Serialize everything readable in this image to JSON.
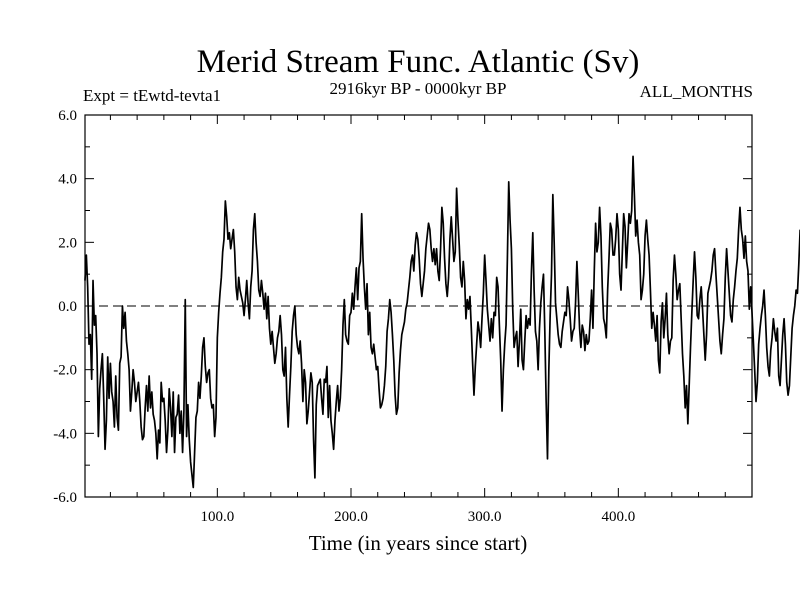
{
  "chart_data": {
    "type": "line",
    "title": "Merid Stream Func. Atlantic (Sv)",
    "subtitle_left": "Expt = tEwtd-tevta1",
    "subtitle_center": "2916kyr BP - 0000kyr BP",
    "subtitle_right": "ALL_MONTHS",
    "xlabel": "Time (in years since start)",
    "ylabel": "",
    "xlim": [
      1,
      500
    ],
    "ylim": [
      -6,
      6
    ],
    "xticks": [
      100,
      200,
      300,
      400
    ],
    "xtick_labels": [
      "100.0",
      "200.0",
      "300.0",
      "400.0"
    ],
    "yticks": [
      6,
      4,
      2,
      0,
      -2,
      -4,
      -6
    ],
    "ytick_labels": [
      "6.0",
      "4.0",
      "2.0",
      "0.0",
      "-2.0",
      "-4.0",
      "-6.0"
    ],
    "zero_line": "dashed",
    "series": [
      {
        "name": "Merid Stream Func. Atlantic",
        "x_start": 1,
        "x_step": 1,
        "values": [
          0.8,
          1.6,
          0.6,
          -1.2,
          -0.9,
          -2.3,
          0.8,
          -0.6,
          -0.3,
          -1.5,
          -4.1,
          -2.6,
          -2.0,
          -1.5,
          -2.9,
          -4.5,
          -3.6,
          -1.6,
          -2.9,
          -1.8,
          -2.7,
          -3.0,
          -3.8,
          -2.2,
          -3.5,
          -3.9,
          -1.8,
          -1.6,
          0.0,
          -0.7,
          -0.2,
          -1.1,
          -1.5,
          -2.0,
          -3.3,
          -2.7,
          -2.0,
          -2.4,
          -3.0,
          -2.7,
          -2.4,
          -3.0,
          -3.8,
          -4.2,
          -4.1,
          -3.2,
          -2.5,
          -3.3,
          -2.2,
          -3.2,
          -2.7,
          -3.4,
          -3.6,
          -4.0,
          -4.8,
          -3.9,
          -4.3,
          -2.4,
          -3.0,
          -2.9,
          -3.6,
          -4.6,
          -3.9,
          -2.6,
          -3.2,
          -4.1,
          -2.7,
          -4.6,
          -3.5,
          -3.4,
          -2.8,
          -4.0,
          -3.3,
          -4.6,
          -3.3,
          0.2,
          -4.1,
          -3.1,
          -4.2,
          -4.9,
          -5.3,
          -5.7,
          -4.6,
          -3.5,
          -3.3,
          -2.4,
          -2.9,
          -2.2,
          -1.3,
          -1.0,
          -1.9,
          -2.4,
          -2.1,
          -2.0,
          -2.9,
          -3.2,
          -3.1,
          -4.1,
          -3.5,
          -1.0,
          -0.2,
          0.4,
          0.9,
          1.7,
          2.1,
          3.3,
          2.8,
          2.1,
          2.3,
          1.8,
          2.1,
          2.4,
          1.7,
          0.6,
          0.2,
          0.9,
          0.5,
          0.3,
          0.1,
          -0.3,
          0.2,
          0.8,
          0.1,
          -0.4,
          0.6,
          1.1,
          2.4,
          2.9,
          2.0,
          1.4,
          0.5,
          0.3,
          0.8,
          0.4,
          -0.1,
          0.4,
          -0.4,
          0.3,
          -0.7,
          -1.2,
          -0.8,
          -1.3,
          -1.8,
          -1.5,
          -1.0,
          -0.8,
          -0.3,
          -0.9,
          -2.0,
          -2.2,
          -1.3,
          -2.9,
          -3.8,
          -2.8,
          -1.9,
          -0.8,
          -0.3,
          0.0,
          -0.9,
          -1.3,
          -1.5,
          -1.1,
          -1.8,
          -3.0,
          -2.0,
          -2.4,
          -3.7,
          -3.3,
          -2.7,
          -2.1,
          -2.4,
          -4.2,
          -5.4,
          -3.1,
          -2.5,
          -2.4,
          -2.3,
          -2.9,
          -3.4,
          -2.3,
          -2.4,
          -1.9,
          -3.5,
          -2.5,
          -3.6,
          -4.0,
          -4.5,
          -3.6,
          -3.0,
          -2.5,
          -3.3,
          -2.9,
          -2.0,
          -0.6,
          0.2,
          -0.9,
          -1.1,
          -1.2,
          -0.3,
          -0.2,
          0.4,
          -0.1,
          0.6,
          1.2,
          0.2,
          1.2,
          1.4,
          2.9,
          1.5,
          0.6,
          -0.1,
          0.7,
          -0.9,
          -0.2,
          -1.3,
          -1.5,
          -1.2,
          -1.6,
          -2.0,
          -1.9,
          -2.6,
          -3.2,
          -3.1,
          -2.9,
          -2.5,
          -1.9,
          -0.8,
          -0.4,
          0.2,
          -0.2,
          -0.9,
          -1.7,
          -2.8,
          -3.4,
          -3.2,
          -2.1,
          -1.4,
          -0.9,
          -0.7,
          -0.5,
          -0.1,
          0.1,
          0.5,
          0.9,
          1.4,
          1.6,
          1.1,
          1.9,
          2.3,
          2.1,
          1.5,
          0.7,
          0.3,
          0.7,
          1.1,
          1.8,
          2.2,
          2.6,
          2.4,
          1.8,
          1.4,
          1.8,
          1.3,
          1.8,
          1.1,
          0.8,
          1.8,
          3.1,
          2.6,
          1.5,
          0.7,
          0.3,
          0.9,
          2.1,
          2.8,
          2.1,
          1.4,
          1.7,
          3.7,
          2.7,
          1.9,
          0.9,
          0.6,
          1.4,
          0.8,
          -0.4,
          0.2,
          -0.1,
          0.3,
          -0.7,
          -1.8,
          -2.8,
          -1.9,
          -1.2,
          -0.5,
          -0.8,
          -1.3,
          -0.4,
          0.4,
          1.6,
          0.8,
          -0.1,
          -0.6,
          -1.1,
          -0.4,
          -1.0,
          -0.2,
          -0.3,
          0.9,
          0.6,
          -0.6,
          -1.7,
          -3.3,
          -2.0,
          -1.2,
          -0.6,
          1.5,
          3.9,
          2.7,
          1.8,
          -0.1,
          -1.3,
          -1.0,
          -0.8,
          -1.9,
          -1.1,
          -0.1,
          -1.7,
          -2.0,
          -1.1,
          -0.3,
          -0.7,
          -0.4,
          -0.6,
          1.1,
          2.3,
          0.5,
          -0.8,
          -1.1,
          -2.0,
          -0.7,
          0.1,
          0.6,
          1.0,
          -0.8,
          -3.0,
          -4.8,
          -2.0,
          -0.3,
          1.0,
          3.5,
          2.0,
          0.1,
          -0.4,
          -0.9,
          -1.2,
          -1.3,
          -0.8,
          -0.5,
          -0.2,
          -0.3,
          0.6,
          0.2,
          -0.4,
          -1.1,
          -0.8,
          -0.7,
          0.1,
          1.4,
          0.4,
          -0.7,
          -1.3,
          -0.6,
          -0.8,
          -1.4,
          -0.9,
          -1.2,
          -1.1,
          -0.4,
          0.5,
          -0.7,
          1.1,
          2.6,
          1.7,
          2.0,
          3.1,
          2.2,
          0.6,
          -0.4,
          -0.6,
          -1.0,
          0.5,
          1.5,
          2.6,
          2.4,
          1.6,
          1.6,
          2.1,
          2.9,
          2.4,
          1.0,
          0.5,
          1.7,
          2.9,
          2.5,
          1.2,
          2.0,
          2.9,
          2.6,
          3.0,
          4.7,
          3.5,
          2.2,
          2.7,
          2.0,
          1.6,
          0.2,
          0.5,
          1.0,
          2.2,
          2.7,
          2.1,
          1.6,
          0.5,
          -0.7,
          -0.2,
          -0.6,
          -1.1,
          -0.3,
          -1.7,
          -2.1,
          -0.5,
          0.1,
          -1.0,
          -0.4,
          0.4,
          -0.9,
          -1.5,
          -1.1,
          -1.0,
          0.8,
          1.6,
          1.0,
          0.2,
          0.5,
          0.7,
          -0.4,
          -1.5,
          -2.2,
          -3.2,
          -2.5,
          -3.7,
          -2.5,
          -1.3,
          -0.2,
          0.8,
          1.7,
          0.9,
          -0.3,
          -0.4,
          0.2,
          0.6,
          -0.1,
          -0.9,
          -1.7,
          -0.9,
          0.4,
          0.6,
          0.8,
          1.1,
          1.6,
          1.8,
          1.0,
          0.3,
          -0.4,
          -1.1,
          -1.5,
          -0.9,
          -0.4,
          0.9,
          1.8,
          1.1,
          0.4,
          -0.3,
          -0.5,
          0.2,
          0.6,
          1.1,
          1.5,
          2.4,
          3.1,
          2.4,
          2.1,
          1.5,
          2.2,
          1.4,
          1.1,
          -0.1,
          0.6,
          -0.2,
          -1.1,
          -2.0,
          -3.0,
          -2.4,
          -1.2,
          -0.7,
          -0.3,
          0.0,
          0.5,
          -0.3,
          -1.3,
          -1.9,
          -2.2,
          -1.4,
          -1.0,
          -0.4,
          -0.8,
          -1.1,
          -0.7,
          -2.2,
          -2.5,
          -1.7,
          -0.9,
          -0.4,
          -1.2,
          -2.4,
          -2.8,
          -2.5,
          -1.6,
          -0.7,
          -0.3,
          0.0,
          0.5,
          0.4,
          1.3,
          2.4
        ]
      }
    ]
  }
}
